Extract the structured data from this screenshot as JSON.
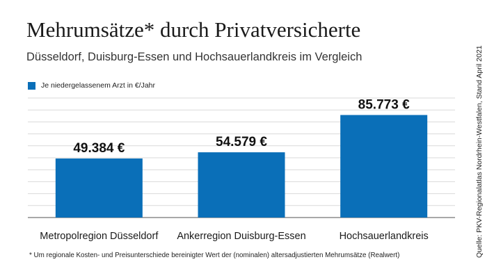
{
  "chart_data": {
    "type": "bar",
    "title": "Mehrumsätze* durch Privatversicherte",
    "subtitle": "Düsseldorf, Duisburg-Essen und Hochsauerlandkreis im Vergleich",
    "categories": [
      "Metropolregion Düsseldorf",
      "Ankerregion Duisburg-Essen",
      "Hochsauerlandkreis"
    ],
    "series": [
      {
        "name": "Je niedergelassenem Arzt in €/Jahr",
        "values": [
          49384,
          54579,
          85773
        ]
      }
    ],
    "value_labels": [
      "49.384 €",
      "54.579 €",
      "85.773 €"
    ],
    "xlabel": "",
    "ylabel": "",
    "ylim": [
      0,
      100000
    ],
    "grid": true,
    "legend_position": "top-left",
    "bar_color": "#0a6fb8",
    "source": "Quelle: PKV-Regionalatlas Nordrhein-Westfalen, Stand April 2021",
    "footnote": "*  Um regionale Kosten- und Preisunterschiede bereinigter Wert der (nominalen) altersadjustierten Mehrumsätze (Realwert)"
  }
}
